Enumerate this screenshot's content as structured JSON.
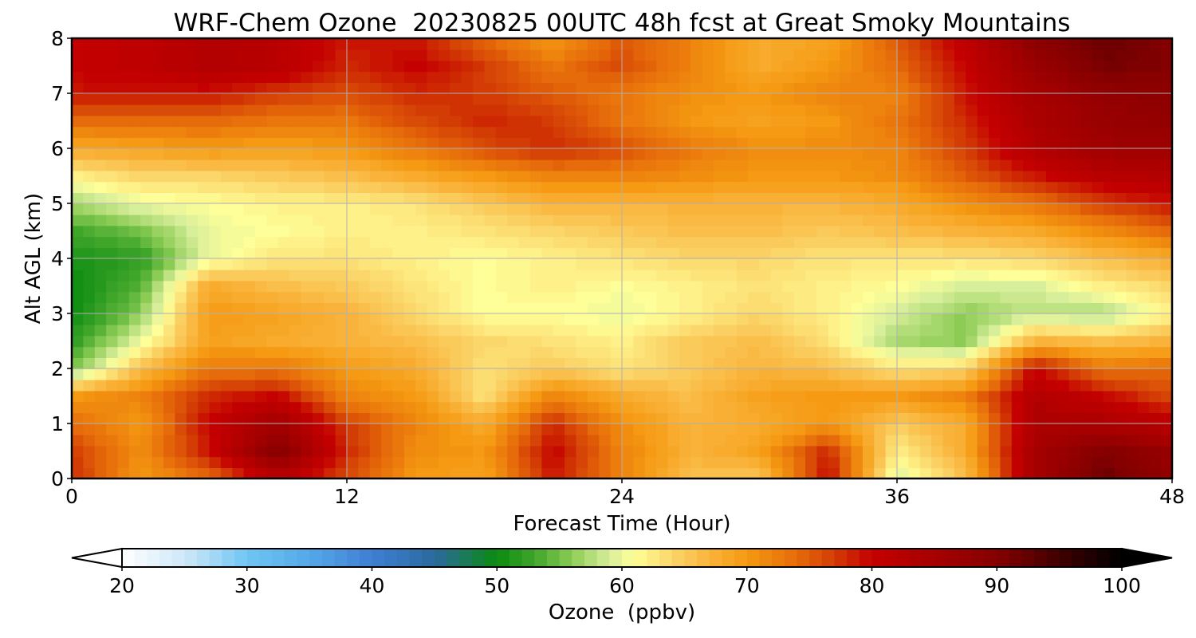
{
  "chart_data": {
    "type": "heatmap",
    "title": "WRF-Chem Ozone  20230825 00UTC 48h fcst at Great Smoky Mountains",
    "xlabel": "Forecast Time (Hour)",
    "ylabel": "Alt AGL (km)",
    "xlim": [
      0,
      48
    ],
    "ylim": [
      0,
      8
    ],
    "xticks": [
      0,
      12,
      24,
      36,
      48
    ],
    "yticks": [
      0,
      1,
      2,
      3,
      4,
      5,
      6,
      7,
      8
    ],
    "grid": true,
    "x": [
      0,
      3,
      6,
      9,
      12,
      15,
      18,
      21,
      24,
      27,
      30,
      33,
      36,
      39,
      42,
      45,
      48
    ],
    "y": [
      0,
      0.5,
      1,
      1.5,
      2,
      2.5,
      3,
      3.5,
      4,
      4.5,
      5,
      5.5,
      6,
      6.5,
      7,
      7.5,
      8
    ],
    "z": [
      [
        78,
        70,
        74,
        82,
        76,
        70,
        69,
        79,
        72,
        66,
        65,
        80,
        59,
        66,
        85,
        92,
        88
      ],
      [
        77,
        71,
        79,
        90,
        78,
        71,
        70,
        80,
        72,
        67,
        69,
        78,
        62,
        68,
        85,
        90,
        87
      ],
      [
        74,
        70,
        80,
        86,
        77,
        72,
        68,
        78,
        71,
        67,
        68,
        70,
        65,
        68,
        84,
        84,
        82
      ],
      [
        70,
        72,
        78,
        80,
        72,
        70,
        63,
        72,
        68,
        66,
        69,
        70,
        70,
        72,
        83,
        80,
        76
      ],
      [
        55,
        66,
        73,
        73,
        70,
        68,
        63,
        65,
        63,
        65,
        67,
        66,
        63,
        64,
        80,
        73,
        74
      ],
      [
        52,
        60,
        69,
        68,
        67,
        66,
        64,
        63,
        62,
        65,
        66,
        63,
        57,
        56,
        67,
        66,
        67
      ],
      [
        50,
        56,
        70,
        69,
        67,
        64,
        61,
        61,
        60,
        62,
        64,
        62,
        59,
        56,
        58,
        57,
        62
      ],
      [
        50,
        54,
        68,
        66,
        65,
        63,
        61,
        62,
        61,
        62,
        63,
        62,
        61,
        59,
        59,
        62,
        64
      ],
      [
        51,
        52,
        60,
        63,
        63,
        62,
        61,
        62,
        63,
        64,
        64,
        63,
        63,
        63,
        64,
        66,
        68
      ],
      [
        53,
        55,
        60,
        61,
        62,
        62,
        63,
        64,
        65,
        66,
        66,
        65,
        66,
        67,
        68,
        71,
        74
      ],
      [
        57,
        60,
        61,
        62,
        62,
        63,
        65,
        67,
        67,
        67,
        67,
        67,
        68,
        71,
        73,
        77,
        79
      ],
      [
        62,
        64,
        64,
        65,
        66,
        68,
        70,
        72,
        72,
        71,
        70,
        70,
        71,
        75,
        79,
        82,
        83
      ],
      [
        68,
        69,
        70,
        69,
        70,
        73,
        76,
        78,
        76,
        73,
        71,
        71,
        72,
        77,
        83,
        86,
        86
      ],
      [
        74,
        74,
        74,
        73,
        73,
        76,
        78,
        77,
        73,
        70,
        69,
        70,
        73,
        78,
        84,
        87,
        88
      ],
      [
        79,
        79,
        79,
        77,
        76,
        78,
        77,
        75,
        73,
        71,
        70,
        72,
        72,
        79,
        85,
        88,
        89
      ],
      [
        80,
        81,
        83,
        82,
        78,
        80,
        77,
        73,
        76,
        72,
        68,
        70,
        74,
        80,
        87,
        91,
        90
      ],
      [
        80,
        81,
        83,
        82,
        79,
        79,
        74,
        70,
        75,
        72,
        68,
        69,
        75,
        81,
        89,
        92,
        90
      ]
    ],
    "colorbar": {
      "label": "Ozone  (ppbv)",
      "min": 20,
      "max": 100,
      "ticks": [
        20,
        30,
        40,
        50,
        60,
        70,
        80,
        90,
        100
      ],
      "extend": "both",
      "colors": {
        "20": "#ffffff",
        "25": "#cfe8f8",
        "30": "#6ec6f2",
        "35": "#55a8e8",
        "40": "#3e7fd3",
        "45": "#2b6a9e",
        "50": "#0a8a10",
        "53": "#3fa62a",
        "56": "#8ccc55",
        "59": "#d7ee9a",
        "61": "#ffff99",
        "64": "#fbd66a",
        "67": "#f9b33a",
        "70": "#f59a12",
        "74": "#e66b0a",
        "77": "#d33c05",
        "80": "#c50000",
        "86": "#a00000",
        "90": "#850000",
        "95": "#400000",
        "100": "#000000"
      }
    }
  }
}
